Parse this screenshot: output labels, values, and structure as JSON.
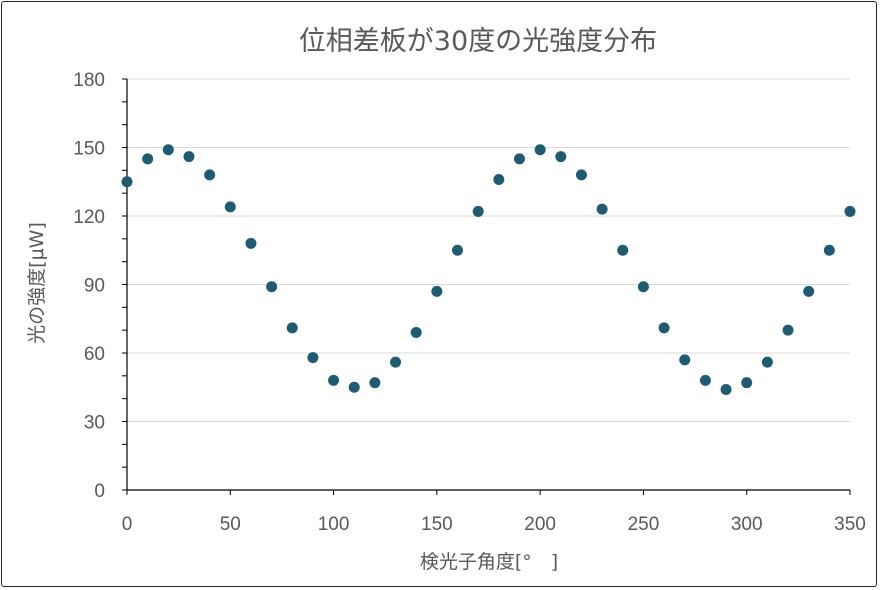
{
  "chart_data": {
    "type": "scatter",
    "title": "位相差板が30度の光強度分布",
    "xlabel": "検光子角度[°　]",
    "ylabel": "光の強度[μW]",
    "xlim": [
      0,
      350
    ],
    "ylim": [
      0,
      180
    ],
    "xticks": [
      "0",
      "50",
      "100",
      "150",
      "200",
      "250",
      "300",
      "350"
    ],
    "yticks": [
      "0",
      "30",
      "60",
      "90",
      "120",
      "150",
      "180"
    ],
    "grid": "horizontal",
    "marker_color": "#1f5c73",
    "series": [
      {
        "x": [
          0,
          10,
          20,
          30,
          40,
          50,
          60,
          70,
          80,
          90,
          100,
          110,
          120,
          130,
          140,
          150,
          160,
          170,
          180,
          190,
          200,
          210,
          220,
          230,
          240,
          250,
          260,
          270,
          280,
          290,
          300,
          310,
          320,
          330,
          340,
          350
        ],
        "y": [
          135,
          145,
          149,
          146,
          138,
          124,
          108,
          89,
          71,
          58,
          48,
          45,
          47,
          56,
          69,
          87,
          105,
          122,
          136,
          145,
          149,
          146,
          138,
          123,
          105,
          89,
          71,
          57,
          48,
          44,
          47,
          56,
          70,
          87,
          105,
          122
        ]
      }
    ]
  }
}
